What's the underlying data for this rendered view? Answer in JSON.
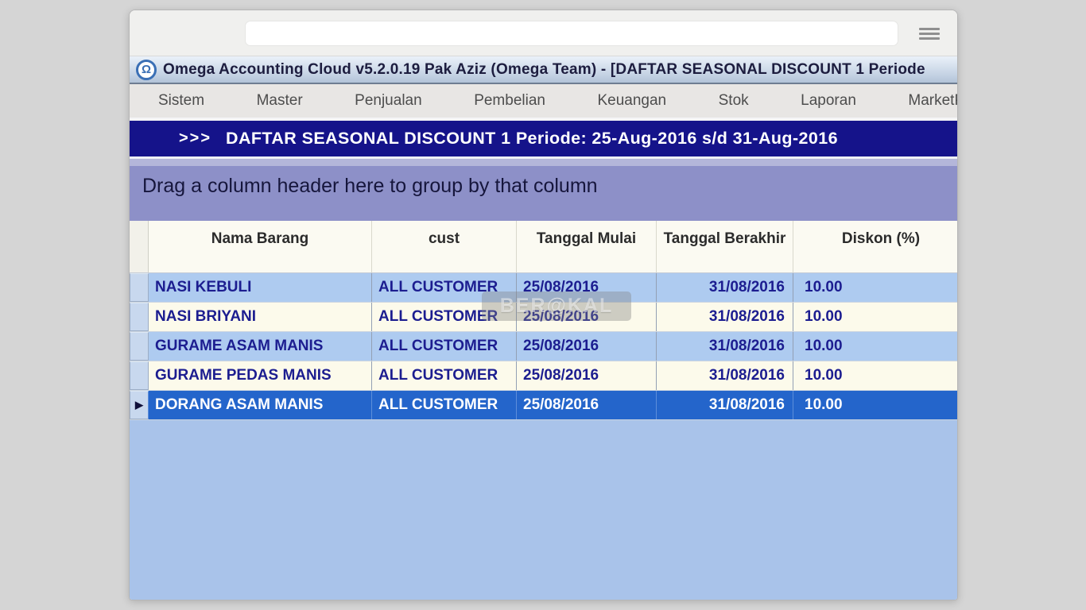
{
  "colors": {
    "page_bg": "#d5d5d5",
    "traffic_red": "#ee5f58",
    "traffic_yellow": "#f5bd4f",
    "traffic_green": "#38c149",
    "banner_bg": "#15138a",
    "group_bar_bg": "#8d90c8",
    "group_bar_top": "#b4b6da",
    "row_blue": "#aecbf0",
    "row_cream": "#fcfaeb",
    "row_selected": "#2465cb",
    "row_text": "#1c1d90",
    "empty_area": "#a9c3ea"
  },
  "browser": {
    "address_value": "",
    "menu_icon": "hamburger-icon"
  },
  "window": {
    "app_icon": "omega-icon",
    "app_icon_glyph": "Ω",
    "title": "Omega Accounting Cloud v5.2.0.19 Pak Aziz (Omega Team) - [DAFTAR SEASONAL DISCOUNT 1 Periode"
  },
  "menu": {
    "items": [
      "Sistem",
      "Master",
      "Penjualan",
      "Pembelian",
      "Keuangan",
      "Stok",
      "Laporan",
      "MarketPlace"
    ]
  },
  "banner": {
    "chevrons": ">>>",
    "text": "DAFTAR SEASONAL DISCOUNT 1 Periode: 25-Aug-2016 s/d 31-Aug-2016"
  },
  "group_bar": {
    "text": "Drag a column header here to group by that column"
  },
  "table": {
    "selected_indicator": "▶",
    "columns": [
      {
        "key": "nama_barang",
        "label": "Nama Barang",
        "align": "left"
      },
      {
        "key": "cust",
        "label": "cust",
        "align": "left"
      },
      {
        "key": "tanggal_mulai",
        "label": "Tanggal Mulai",
        "align": "left"
      },
      {
        "key": "tanggal_berakhir",
        "label": "Tanggal Berakhir",
        "align": "right"
      },
      {
        "key": "diskon",
        "label": "Diskon (%)",
        "align": "left"
      }
    ],
    "rows": [
      {
        "nama_barang": "NASI KEBULI",
        "cust": "ALL CUSTOMER",
        "tanggal_mulai": "25/08/2016",
        "tanggal_berakhir": "31/08/2016",
        "diskon": "10.00",
        "selected": false
      },
      {
        "nama_barang": "NASI BRIYANI",
        "cust": "ALL CUSTOMER",
        "tanggal_mulai": "25/08/2016",
        "tanggal_berakhir": "31/08/2016",
        "diskon": "10.00",
        "selected": false
      },
      {
        "nama_barang": "GURAME ASAM MANIS",
        "cust": "ALL CUSTOMER",
        "tanggal_mulai": "25/08/2016",
        "tanggal_berakhir": "31/08/2016",
        "diskon": "10.00",
        "selected": false
      },
      {
        "nama_barang": "GURAME PEDAS MANIS",
        "cust": "ALL CUSTOMER",
        "tanggal_mulai": "25/08/2016",
        "tanggal_berakhir": "31/08/2016",
        "diskon": "10.00",
        "selected": false
      },
      {
        "nama_barang": "DORANG ASAM MANIS",
        "cust": "ALL CUSTOMER",
        "tanggal_mulai": "25/08/2016",
        "tanggal_berakhir": "31/08/2016",
        "diskon": "10.00",
        "selected": true
      }
    ]
  },
  "watermark": {
    "text": "BER@KAL"
  }
}
